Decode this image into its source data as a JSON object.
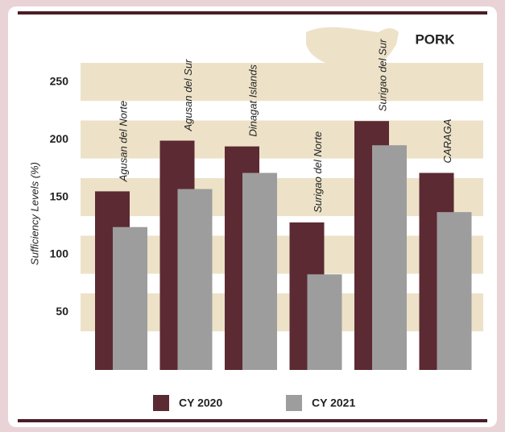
{
  "chart_data": {
    "type": "bar",
    "title": "PORK",
    "y_label": "Sufficiency  Levels (%)",
    "categories": [
      "Agusan del Norte",
      "Agusan del Sur",
      "Dinagat Islands",
      "Surigao del Norte",
      "Surigao del Sur",
      "CARAGA"
    ],
    "series": [
      {
        "name": "CY 2020",
        "color": "#5c2a33",
        "values": [
          155,
          199,
          194,
          128,
          216,
          171
        ]
      },
      {
        "name": "CY 2021",
        "color": "#9d9d9d",
        "values": [
          124,
          157,
          171,
          83,
          195,
          137
        ]
      }
    ],
    "ylim": [
      0,
      270
    ],
    "yticks": [
      50,
      100,
      150,
      200,
      250
    ],
    "grid": true
  }
}
